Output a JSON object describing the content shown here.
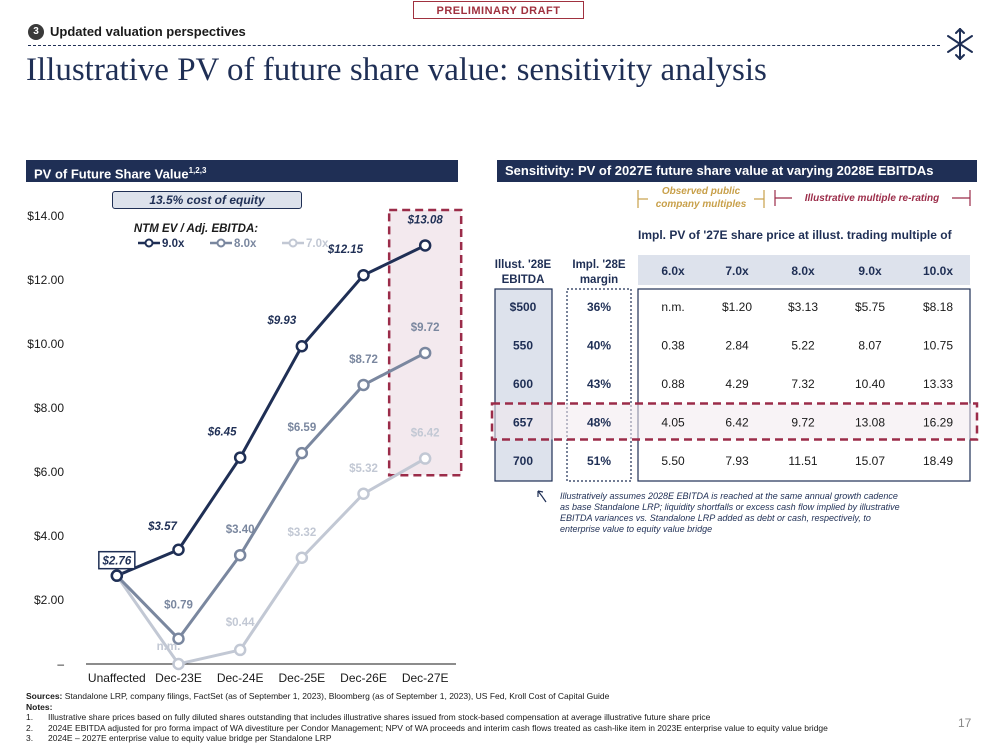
{
  "draft_label": "PRELIMINARY DRAFT",
  "section": {
    "number": "3",
    "label": "Updated valuation perspectives"
  },
  "title": "Illustrative PV of future share value: sensitivity analysis",
  "left_panel": {
    "header": "PV of Future Share Value",
    "header_sup": "1,2,3",
    "cost_of_equity": "13.5% cost of equity",
    "legend_title": "NTM EV / Adj. EBITDA:"
  },
  "chart_data": {
    "type": "line",
    "categories": [
      "Unaffected",
      "Dec-23E",
      "Dec-24E",
      "Dec-25E",
      "Dec-26E",
      "Dec-27E"
    ],
    "y_ticks": [
      "–",
      "$2.00",
      "$4.00",
      "$6.00",
      "$8.00",
      "$10.00",
      "$12.00",
      "$14.00"
    ],
    "ylim": [
      0,
      14
    ],
    "series": [
      {
        "name": "9.0x",
        "color": "#1f2f55",
        "values": [
          2.76,
          3.57,
          6.45,
          9.93,
          12.15,
          13.08
        ],
        "labels": [
          "$2.76",
          "$3.57",
          "$6.45",
          "$9.93",
          "$12.15",
          "$13.08"
        ]
      },
      {
        "name": "8.0x",
        "color": "#7a879f",
        "values": [
          2.76,
          0.79,
          3.4,
          6.59,
          8.72,
          9.72
        ],
        "labels": [
          "",
          "$0.79",
          "$3.40",
          "$6.59",
          "$8.72",
          "$9.72"
        ]
      },
      {
        "name": "7.0x",
        "color": "#c2c8d4",
        "values": [
          2.76,
          0.0,
          0.44,
          3.32,
          5.32,
          6.42
        ],
        "labels": [
          "",
          "n.m.",
          "$0.44",
          "$3.32",
          "$5.32",
          "$6.42"
        ]
      }
    ],
    "highlight_category": "Dec-27E"
  },
  "right_panel": {
    "header": "Sensitivity: PV of 2027E future share value at varying 2028E EBITDAs",
    "observed_label_1": "Observed public",
    "observed_label_2": "company multiples",
    "rerating_label": "Illustrative multiple re-rating",
    "matrix_title": "Impl. PV of '27E share price at illust. trading multiple of",
    "col_ebitda_1": "Illust. '28E",
    "col_ebitda_2": "EBITDA",
    "col_margin_1": "Impl. '28E",
    "col_margin_2": "margin",
    "multiples": [
      "6.0x",
      "7.0x",
      "8.0x",
      "9.0x",
      "10.0x"
    ],
    "rows": [
      {
        "ebitda": "$500",
        "margin": "36%",
        "values": [
          "n.m.",
          "$1.20",
          "$3.13",
          "$5.75",
          "$8.18"
        ]
      },
      {
        "ebitda": "550",
        "margin": "40%",
        "values": [
          "0.38",
          "2.84",
          "5.22",
          "8.07",
          "10.75"
        ]
      },
      {
        "ebitda": "600",
        "margin": "43%",
        "values": [
          "0.88",
          "4.29",
          "7.32",
          "10.40",
          "13.33"
        ]
      },
      {
        "ebitda": "657",
        "margin": "48%",
        "values": [
          "4.05",
          "6.42",
          "9.72",
          "13.08",
          "16.29"
        ]
      },
      {
        "ebitda": "700",
        "margin": "51%",
        "values": [
          "5.50",
          "7.93",
          "11.51",
          "15.07",
          "18.49"
        ]
      }
    ],
    "highlight_row": 3,
    "callout": "Illustratively assumes 2028E EBITDA is reached at the same annual growth cadence as base Standalone LRP; liquidity shortfalls or excess cash flow implied by illustrative EBITDA variances vs. Standalone LRP added as debt or cash, respectively, to enterprise value to equity value bridge"
  },
  "footer": {
    "sources_label": "Sources:",
    "sources": "Standalone LRP, company filings, FactSet (as of September 1, 2023), Bloomberg (as of September 1, 2023), US Fed, Kroll Cost of Capital Guide",
    "notes_label": "Notes:",
    "notes": [
      {
        "num": "1.",
        "text": "Illustrative share prices based on fully diluted shares outstanding that includes illustrative shares issued from stock-based compensation at average illustrative future share price"
      },
      {
        "num": "2.",
        "text": "2024E EBITDA adjusted for pro forma impact of WA divestiture per Condor Management; NPV of WA proceeds and interim cash flows treated as cash-like item in 2023E enterprise value to equity value bridge"
      },
      {
        "num": "3.",
        "text": "2024E – 2027E enterprise value to equity value bridge per Standalone LRP"
      }
    ],
    "page_number": "17"
  },
  "colors": {
    "navy": "#1f2f55",
    "accent_red": "#9b2c49",
    "gold": "#c8a04a",
    "light_fill": "#dde2ec"
  }
}
